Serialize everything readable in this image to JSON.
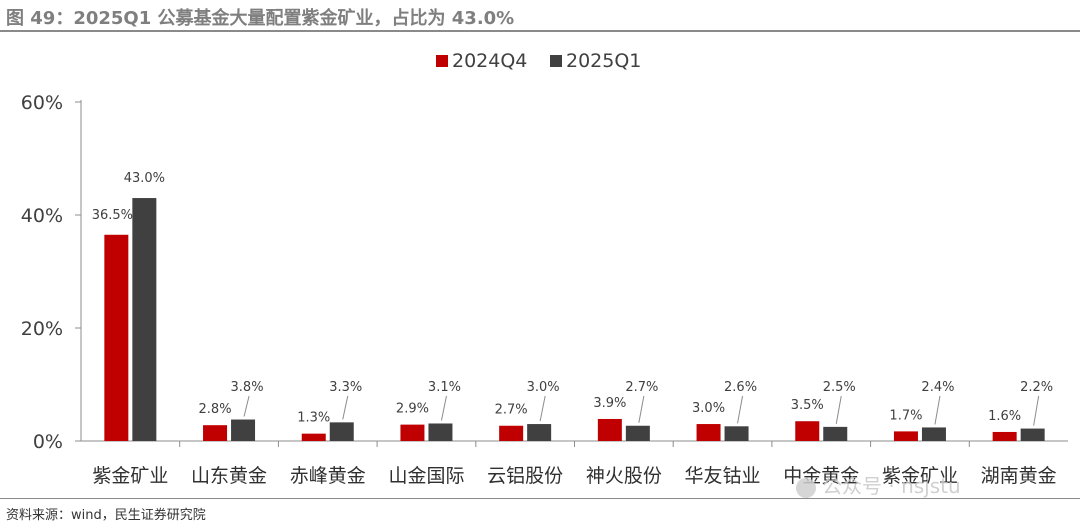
{
  "title": "图 49：2025Q1 公募基金大量配置紫金矿业，占比为 43.0%",
  "source": "资料来源：wind，民生证券研究院",
  "watermark": "公众号 · nsjstu",
  "colors": {
    "2024Q4": "#c00000",
    "2025Q1": "#404040"
  },
  "chart_data": {
    "type": "bar",
    "categories": [
      "紫金矿业",
      "山东黄金",
      "赤峰黄金",
      "山金国际",
      "云铝股份",
      "神火股份",
      "华友钴业",
      "中金黄金",
      "紫金矿业",
      "湖南黄金"
    ],
    "series": [
      {
        "name": "2024Q4",
        "values": [
          36.5,
          2.8,
          1.3,
          2.9,
          2.7,
          3.9,
          3.0,
          3.5,
          1.7,
          1.6
        ],
        "labels": [
          "36.5%",
          "2.8%",
          "1.3%",
          "2.9%",
          "2.7%",
          "3.9%",
          "3.0%",
          "3.5%",
          "1.7%",
          "1.6%"
        ]
      },
      {
        "name": "2025Q1",
        "values": [
          43.0,
          3.8,
          3.3,
          3.1,
          3.0,
          2.7,
          2.6,
          2.5,
          2.4,
          2.2
        ],
        "labels": [
          "43.0%",
          "3.8%",
          "3.3%",
          "3.1%",
          "3.0%",
          "2.7%",
          "2.6%",
          "2.5%",
          "2.4%",
          "2.2%"
        ]
      }
    ],
    "yticks": [
      "0%",
      "20%",
      "40%",
      "60%"
    ],
    "ylim": [
      0,
      60
    ],
    "legend": "top-center",
    "grid": false
  }
}
